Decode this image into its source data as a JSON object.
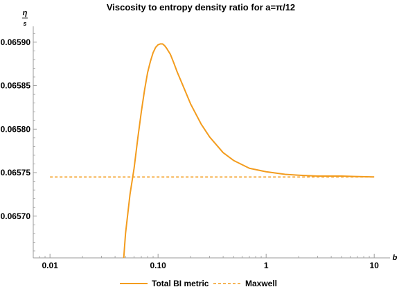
{
  "chart_data": {
    "type": "line",
    "title": "Viscosity to entropy density ratio for a=π/12",
    "ylabel_numerator": "η",
    "ylabel_denominator": "s",
    "xlabel": "b",
    "x_scale": "log",
    "xlim": [
      0.007,
      14
    ],
    "ylim": [
      0.065652,
      0.065915
    ],
    "x_ticks": [
      {
        "value": 0.01,
        "label": "0.01"
      },
      {
        "value": 0.1,
        "label": "0.10"
      },
      {
        "value": 1,
        "label": "1"
      },
      {
        "value": 10,
        "label": "10"
      }
    ],
    "y_ticks": [
      {
        "value": 0.0657,
        "label": "0.06570"
      },
      {
        "value": 0.06575,
        "label": "0.06575"
      },
      {
        "value": 0.0658,
        "label": "0.06580"
      },
      {
        "value": 0.06585,
        "label": "0.06585"
      },
      {
        "value": 0.0659,
        "label": "0.06590"
      }
    ],
    "grid": false,
    "legend_position": "bottom",
    "colors": {
      "series": "#f39c1e",
      "axis": "#9a9a9a"
    },
    "series": [
      {
        "name": "Total BI metric",
        "style": "solid",
        "x": [
          0.048,
          0.05,
          0.055,
          0.06,
          0.065,
          0.07,
          0.075,
          0.08,
          0.085,
          0.09,
          0.095,
          0.1,
          0.105,
          0.11,
          0.115,
          0.12,
          0.13,
          0.14,
          0.15,
          0.17,
          0.2,
          0.25,
          0.3,
          0.4,
          0.5,
          0.7,
          1.0,
          1.5,
          2.0,
          3.0,
          5.0,
          10.0
        ],
        "values": [
          0.06565,
          0.06568,
          0.065725,
          0.065755,
          0.06579,
          0.06582,
          0.065845,
          0.065865,
          0.065878,
          0.065888,
          0.065894,
          0.065897,
          0.065898,
          0.065898,
          0.065896,
          0.065893,
          0.065886,
          0.065876,
          0.065866,
          0.06585,
          0.065829,
          0.065806,
          0.065791,
          0.065773,
          0.065764,
          0.065755,
          0.065751,
          0.065748,
          0.065747,
          0.065746,
          0.065746,
          0.065745
        ]
      },
      {
        "name": "Maxwell",
        "style": "dashed",
        "x": [
          0.01,
          10
        ],
        "values": [
          0.065745,
          0.065745
        ]
      }
    ]
  }
}
